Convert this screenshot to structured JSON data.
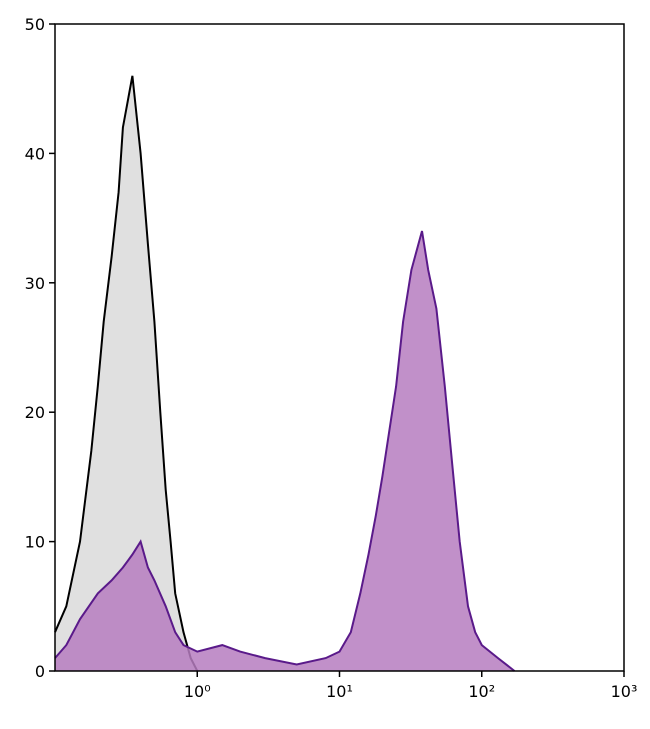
{
  "chart_data": {
    "type": "area",
    "xscale": "log",
    "xlim": [
      0.1,
      1000
    ],
    "ylim": [
      0,
      50
    ],
    "xticks": [
      {
        "value": 1,
        "label": "10⁰"
      },
      {
        "value": 10,
        "label": "10¹"
      },
      {
        "value": 100,
        "label": "10²"
      },
      {
        "value": 1000,
        "label": "10³"
      }
    ],
    "yticks": [
      0,
      10,
      20,
      30,
      40,
      50
    ],
    "series": [
      {
        "color": "#000000",
        "fill": "#e0e0e0",
        "x": [
          0.1,
          0.12,
          0.15,
          0.18,
          0.2,
          0.22,
          0.25,
          0.28,
          0.3,
          0.35,
          0.4,
          0.45,
          0.5,
          0.55,
          0.6,
          0.65,
          0.7,
          0.8,
          0.9,
          1.0
        ],
        "values": [
          3,
          5,
          10,
          17,
          22,
          27,
          32,
          37,
          42,
          46,
          40,
          33,
          27,
          20,
          14,
          10,
          6,
          3,
          1,
          0
        ]
      },
      {
        "color": "#5a1a8a",
        "fill": "#b67cc0",
        "x": [
          0.1,
          0.12,
          0.15,
          0.2,
          0.25,
          0.3,
          0.35,
          0.4,
          0.45,
          0.5,
          0.6,
          0.7,
          0.8,
          1,
          1.5,
          2,
          3,
          5,
          8,
          10,
          12,
          14,
          16,
          18,
          20,
          22,
          25,
          28,
          32,
          38,
          42,
          48,
          55,
          62,
          70,
          80,
          90,
          100,
          130,
          170
        ],
        "values": [
          1,
          2,
          4,
          6,
          7,
          8,
          9,
          10,
          8,
          7,
          5,
          3,
          2,
          1.5,
          2,
          1.5,
          1,
          0.5,
          1,
          1.5,
          3,
          6,
          9,
          12,
          15,
          18,
          22,
          27,
          31,
          34,
          31,
          28,
          22,
          16,
          10,
          5,
          3,
          2,
          1,
          0
        ]
      }
    ]
  }
}
